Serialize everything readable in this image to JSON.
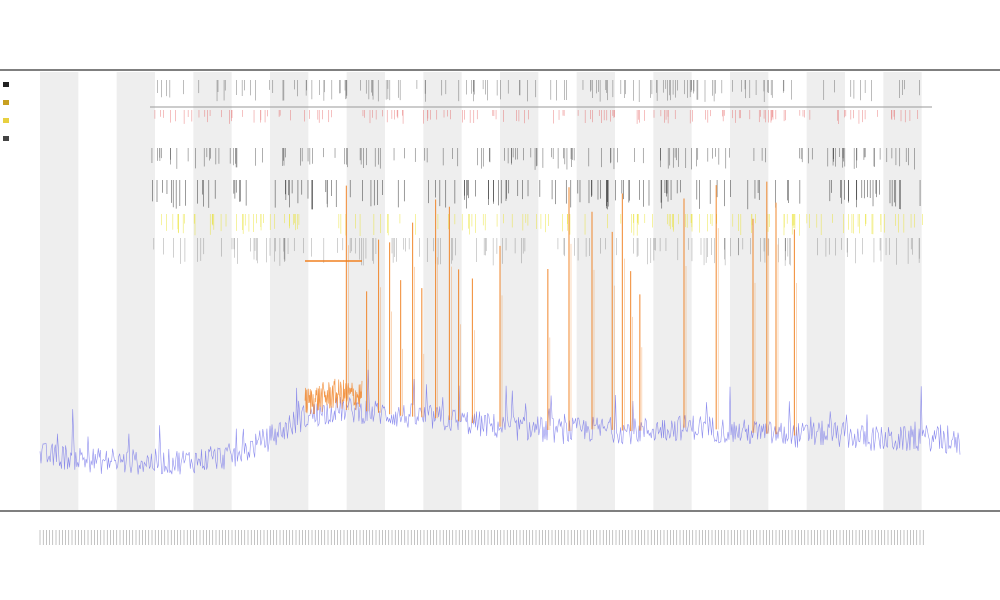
{
  "chart_data": {
    "type": "line",
    "title": "",
    "subtitle_1": "",
    "subtitle_2": "",
    "xlabel": "",
    "ylabel": "",
    "grid": false,
    "band_count": 24,
    "legend_placement": "left",
    "legend_entries": [
      "",
      "",
      "",
      ""
    ],
    "colors": {
      "base_series": "#6a6ae8",
      "highlight_series": "#f08020",
      "event_black": "#222222",
      "event_red": "#e04040",
      "event_yellow": "#e8e020",
      "band": "#eeeeee",
      "axis": "#333333"
    },
    "series": [
      {
        "kind": "base",
        "values": [
          0.25,
          0.24,
          0.22,
          0.22,
          0.22,
          0.23,
          0.25,
          0.33,
          0.42,
          0.46,
          0.45,
          0.43,
          0.42,
          0.4,
          0.38,
          0.37,
          0.36,
          0.37,
          0.36,
          0.37,
          0.38,
          0.36,
          0.35,
          0.34,
          0.35,
          0.33,
          0.32,
          0.33,
          0.3
        ]
      }
    ],
    "spikes": [
      0.333,
      0.355,
      0.368,
      0.38,
      0.392,
      0.405,
      0.415,
      0.43,
      0.445,
      0.455,
      0.47,
      0.5,
      0.552,
      0.575,
      0.6,
      0.622,
      0.633,
      0.642,
      0.652,
      0.7,
      0.735,
      0.775,
      0.79,
      0.8,
      0.82
    ]
  }
}
